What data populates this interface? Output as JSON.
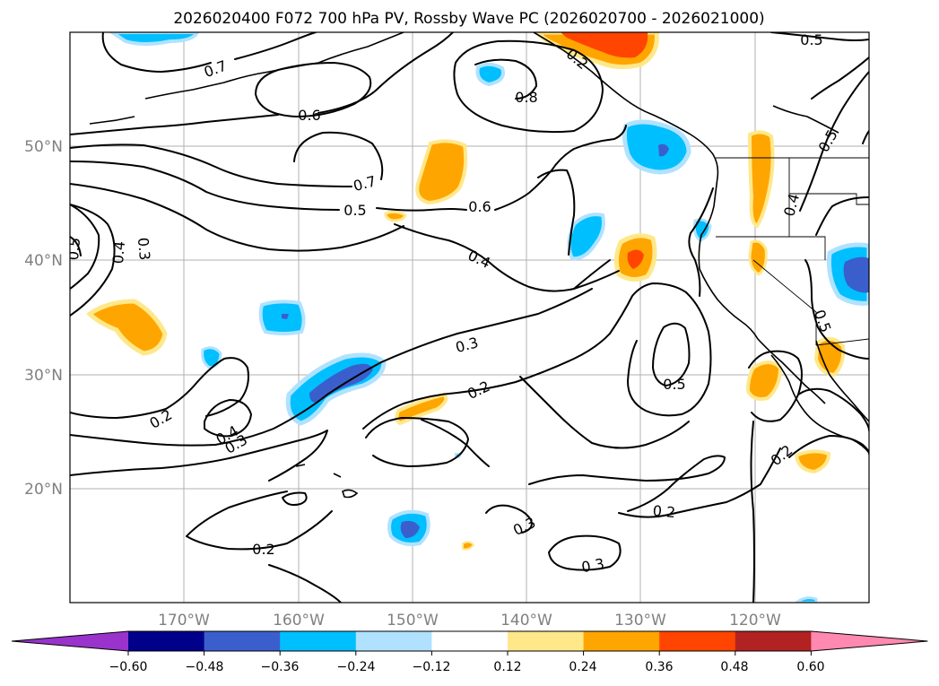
{
  "title": "2026020400 F072 700 hPa PV, Rossby Wave PC (2026020700 - 2026021000)",
  "lat_labels": [
    "50°N",
    "40°N",
    "30°N",
    "20°N"
  ],
  "lon_labels": [
    "170°W",
    "160°W",
    "150°W",
    "140°W",
    "130°W",
    "120°W"
  ],
  "colorbar": {
    "tick_labels": [
      "−0.60",
      "−0.48",
      "−0.36",
      "−0.24",
      "−0.12",
      "0.12",
      "0.24",
      "0.36",
      "0.48",
      "0.60"
    ],
    "colors": [
      "#9933cc",
      "#00008b",
      "#3a5fcd",
      "#00bfff",
      "#b0e2ff",
      "#ffffff",
      "#ffe88a",
      "#ffa500",
      "#ff4500",
      "#b22222",
      "#ff89b0"
    ]
  },
  "contour_labels": [
    "0.7",
    "0.6",
    "0.8",
    "0.5",
    "0.7",
    "0.5",
    "0.6",
    "0.4",
    "0.5",
    "0.4",
    "0.3",
    "0.3",
    "0.2",
    "0.2",
    "0.4",
    "0.3",
    "0.5",
    "0.5",
    "0.5",
    "0.4",
    "0.2",
    "0.3",
    "0.2",
    "0.2",
    "0.3",
    "0.2"
  ],
  "shading_colors": {
    "positive_light": "#ffe88a",
    "positive": "#ffa500",
    "positive_strong": "#ff4500",
    "negative_light": "#b0e2ff",
    "negative": "#00bfff",
    "negative_strong": "#3a5fcd"
  }
}
